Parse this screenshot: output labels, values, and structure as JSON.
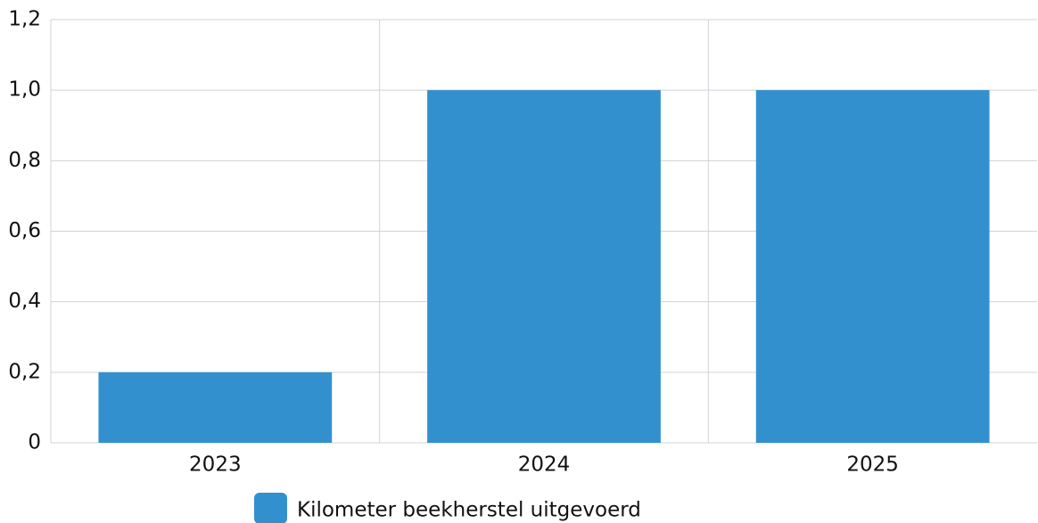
{
  "chart_data": {
    "type": "bar",
    "categories": [
      "2023",
      "2024",
      "2025"
    ],
    "series": [
      {
        "name": "Kilometer beekherstel uitgevoerd",
        "color": "#3390ce",
        "values": [
          0.2,
          1,
          1
        ]
      }
    ],
    "ylim": [
      0,
      1.2
    ],
    "yticks": [
      0,
      {
        "value": 0.2,
        "label": "0,2"
      },
      {
        "value": 0.4,
        "label": "0,4"
      },
      {
        "value": 0.6,
        "label": "0,6"
      },
      {
        "value": 0.8,
        "label": "0,8"
      },
      {
        "value": 1,
        "label": "1,0"
      },
      {
        "value": 1.2,
        "label": "1,2"
      }
    ],
    "grid": true,
    "legend": "bottom"
  }
}
